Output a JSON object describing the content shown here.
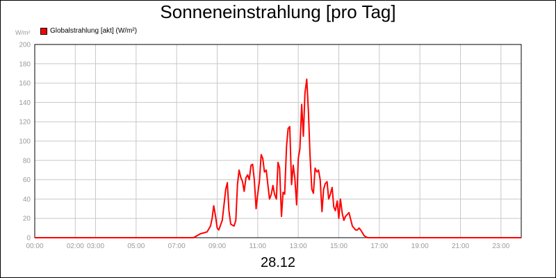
{
  "chart_data": {
    "type": "line",
    "title": "Sonneneinstrahlung [pro Tag]",
    "ylabel": "W/m²",
    "date_label": "28.12",
    "ylim": [
      0,
      200
    ],
    "y_ticks": [
      0,
      20,
      40,
      60,
      80,
      100,
      120,
      140,
      160,
      180,
      200
    ],
    "x_ticks": [
      {
        "label": "00:00",
        "x": 0
      },
      {
        "label": "02:00",
        "x": 2
      },
      {
        "label": "03:00",
        "x": 3
      },
      {
        "label": "05:00",
        "x": 5
      },
      {
        "label": "07:00",
        "x": 7
      },
      {
        "label": "09:00",
        "x": 9
      },
      {
        "label": "11:00",
        "x": 11
      },
      {
        "label": "13:00",
        "x": 13
      },
      {
        "label": "15:00",
        "x": 15
      },
      {
        "label": "17:00",
        "x": 17
      },
      {
        "label": "19:00",
        "x": 19
      },
      {
        "label": "21:00",
        "x": 21
      },
      {
        "label": "23:00",
        "x": 23
      }
    ],
    "xlim": [
      0,
      24
    ],
    "grid": true,
    "legend_position": "top-left",
    "series": [
      {
        "name": "Globalstrahlung [akt] (W/m²)",
        "color": "#ff0000",
        "x": [
          0,
          7.83,
          8.0,
          8.17,
          8.33,
          8.5,
          8.67,
          8.75,
          8.83,
          8.92,
          9.0,
          9.08,
          9.25,
          9.42,
          9.5,
          9.58,
          9.67,
          9.83,
          9.92,
          10.0,
          10.08,
          10.17,
          10.25,
          10.33,
          10.42,
          10.5,
          10.58,
          10.67,
          10.75,
          10.83,
          10.92,
          11.0,
          11.08,
          11.17,
          11.25,
          11.33,
          11.42,
          11.5,
          11.58,
          11.67,
          11.75,
          11.83,
          11.92,
          12.0,
          12.08,
          12.17,
          12.25,
          12.33,
          12.42,
          12.5,
          12.58,
          12.67,
          12.75,
          12.83,
          12.92,
          13.0,
          13.08,
          13.17,
          13.25,
          13.33,
          13.42,
          13.5,
          13.58,
          13.67,
          13.75,
          13.83,
          13.92,
          14.0,
          14.08,
          14.17,
          14.25,
          14.33,
          14.42,
          14.5,
          14.58,
          14.67,
          14.75,
          14.83,
          14.92,
          15.0,
          15.08,
          15.17,
          15.25,
          15.33,
          15.5,
          15.67,
          15.83,
          15.92,
          16.0,
          16.08,
          16.25,
          16.42,
          16.58,
          24
        ],
        "values": [
          0,
          0,
          2,
          4,
          5,
          6,
          12,
          20,
          33,
          22,
          10,
          8,
          18,
          50,
          57,
          28,
          14,
          12,
          18,
          55,
          70,
          62,
          58,
          48,
          62,
          65,
          60,
          75,
          76,
          60,
          30,
          45,
          58,
          86,
          82,
          68,
          70,
          55,
          40,
          45,
          54,
          45,
          40,
          78,
          72,
          22,
          47,
          45,
          95,
          113,
          115,
          55,
          75,
          62,
          34,
          82,
          92,
          138,
          105,
          150,
          164,
          130,
          85,
          50,
          46,
          72,
          68,
          70,
          60,
          27,
          50,
          56,
          58,
          40,
          45,
          52,
          32,
          28,
          38,
          20,
          40,
          25,
          18,
          22,
          26,
          12,
          8,
          8,
          10,
          8,
          2,
          0,
          0,
          0
        ]
      }
    ]
  }
}
